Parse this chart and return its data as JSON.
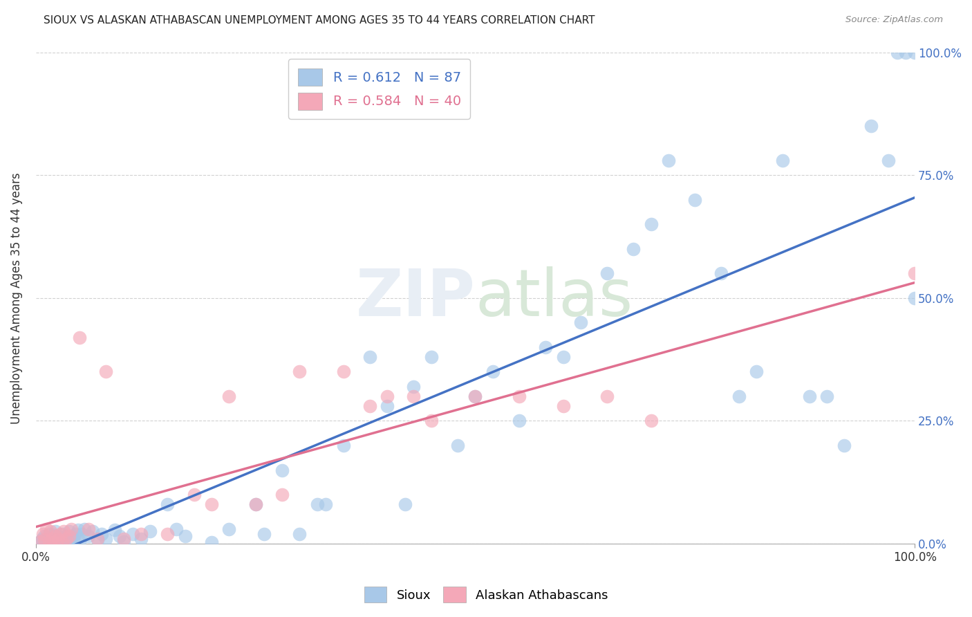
{
  "title": "SIOUX VS ALASKAN ATHABASCAN UNEMPLOYMENT AMONG AGES 35 TO 44 YEARS CORRELATION CHART",
  "source": "Source: ZipAtlas.com",
  "ylabel": "Unemployment Among Ages 35 to 44 years",
  "xlim": [
    0,
    1.0
  ],
  "ylim": [
    0,
    1.0
  ],
  "ytick_labels": [
    "0.0%",
    "25.0%",
    "50.0%",
    "75.0%",
    "100.0%"
  ],
  "ytick_positions": [
    0.0,
    0.25,
    0.5,
    0.75,
    1.0
  ],
  "blue_color": "#A8C8E8",
  "pink_color": "#F4A8B8",
  "blue_line_color": "#4472C4",
  "pink_line_color": "#E07090",
  "blue_label_color": "#4472C4",
  "pink_label_color": "#E07090",
  "background_color": "#FFFFFF",
  "legend_r_blue": "R = 0.612",
  "legend_n_blue": "N = 87",
  "legend_r_pink": "R = 0.584",
  "legend_n_pink": "N = 40",
  "sioux_x": [
    0.005,
    0.007,
    0.008,
    0.01,
    0.01,
    0.012,
    0.013,
    0.015,
    0.015,
    0.016,
    0.018,
    0.02,
    0.02,
    0.022,
    0.022,
    0.025,
    0.025,
    0.027,
    0.028,
    0.03,
    0.03,
    0.032,
    0.033,
    0.035,
    0.037,
    0.038,
    0.04,
    0.042,
    0.043,
    0.045,
    0.048,
    0.05,
    0.052,
    0.055,
    0.06,
    0.065,
    0.07,
    0.075,
    0.08,
    0.09,
    0.095,
    0.1,
    0.11,
    0.12,
    0.13,
    0.15,
    0.16,
    0.17,
    0.2,
    0.22,
    0.25,
    0.26,
    0.28,
    0.3,
    0.32,
    0.33,
    0.35,
    0.38,
    0.4,
    0.42,
    0.43,
    0.45,
    0.48,
    0.5,
    0.52,
    0.55,
    0.58,
    0.6,
    0.62,
    0.65,
    0.68,
    0.7,
    0.72,
    0.75,
    0.78,
    0.8,
    0.82,
    0.85,
    0.88,
    0.9,
    0.92,
    0.95,
    0.97,
    0.98,
    0.99,
    1.0,
    1.0
  ],
  "sioux_y": [
    0.005,
    0.01,
    0.003,
    0.008,
    0.015,
    0.005,
    0.012,
    0.003,
    0.02,
    0.007,
    0.005,
    0.003,
    0.018,
    0.008,
    0.025,
    0.003,
    0.015,
    0.01,
    0.005,
    0.003,
    0.02,
    0.008,
    0.015,
    0.005,
    0.01,
    0.025,
    0.003,
    0.015,
    0.008,
    0.02,
    0.028,
    0.005,
    0.02,
    0.03,
    0.015,
    0.025,
    0.008,
    0.02,
    0.01,
    0.028,
    0.015,
    0.005,
    0.02,
    0.01,
    0.025,
    0.08,
    0.03,
    0.015,
    0.003,
    0.03,
    0.08,
    0.02,
    0.15,
    0.02,
    0.08,
    0.08,
    0.2,
    0.38,
    0.28,
    0.08,
    0.32,
    0.38,
    0.2,
    0.3,
    0.35,
    0.25,
    0.4,
    0.38,
    0.45,
    0.55,
    0.6,
    0.65,
    0.78,
    0.7,
    0.55,
    0.3,
    0.35,
    0.78,
    0.3,
    0.3,
    0.2,
    0.85,
    0.78,
    1.0,
    1.0,
    0.5,
    1.0
  ],
  "ath_x": [
    0.005,
    0.008,
    0.01,
    0.012,
    0.015,
    0.017,
    0.018,
    0.02,
    0.022,
    0.025,
    0.028,
    0.03,
    0.032,
    0.035,
    0.038,
    0.04,
    0.05,
    0.06,
    0.07,
    0.08,
    0.1,
    0.12,
    0.15,
    0.18,
    0.2,
    0.22,
    0.25,
    0.28,
    0.3,
    0.35,
    0.38,
    0.4,
    0.43,
    0.45,
    0.5,
    0.55,
    0.6,
    0.65,
    0.7,
    1.0
  ],
  "ath_y": [
    0.005,
    0.02,
    0.008,
    0.03,
    0.005,
    0.025,
    0.01,
    0.003,
    0.015,
    0.008,
    0.02,
    0.003,
    0.025,
    0.01,
    0.015,
    0.03,
    0.42,
    0.03,
    0.01,
    0.35,
    0.01,
    0.02,
    0.02,
    0.1,
    0.08,
    0.3,
    0.08,
    0.1,
    0.35,
    0.35,
    0.28,
    0.3,
    0.3,
    0.25,
    0.3,
    0.3,
    0.28,
    0.3,
    0.25,
    0.55
  ]
}
